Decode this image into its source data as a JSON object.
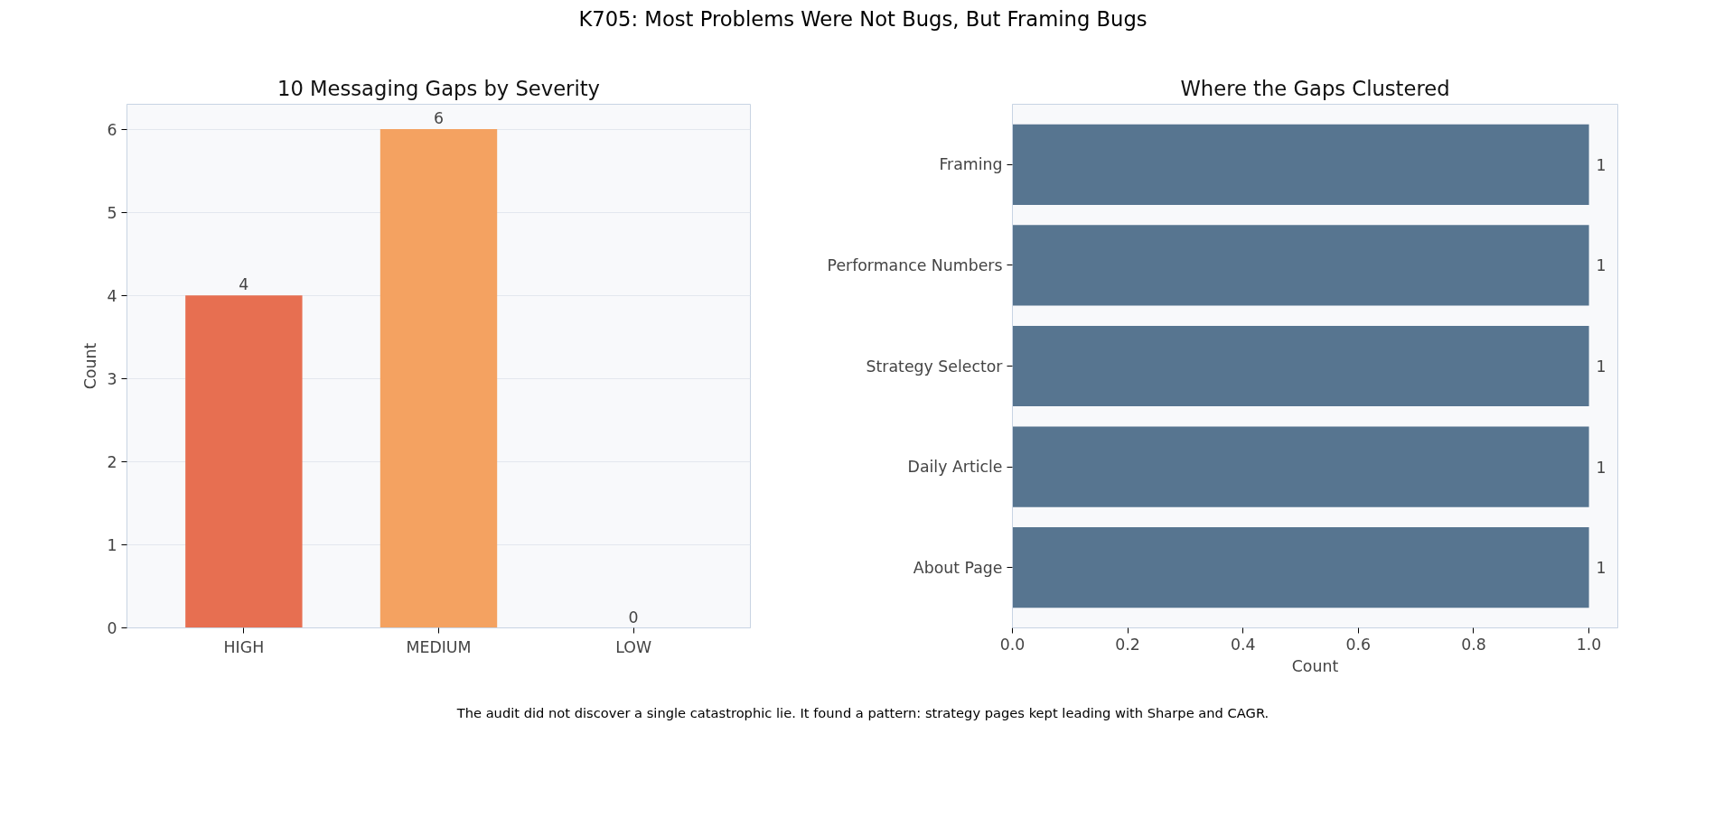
{
  "chart_data": [
    {
      "type": "bar",
      "title": "10 Messaging Gaps by Severity",
      "ylabel": "Count",
      "categories": [
        "HIGH",
        "MEDIUM",
        "LOW"
      ],
      "values": [
        4,
        6,
        0
      ],
      "colors": [
        "#e76f51",
        "#f4a261",
        "#2a9d8f"
      ],
      "ylim": [
        0,
        6.3
      ],
      "yticks": [
        0,
        1,
        2,
        3,
        4,
        5,
        6
      ],
      "grid": "y",
      "data_labels": true,
      "annotations": [
        "K705: Most Problems Were Not Bugs, But Framing Bugs",
        "The audit did not discover a single catastrophic lie. It found a pattern: strategy pages kept leading with Sharpe and CAGR."
      ]
    },
    {
      "type": "bar",
      "orientation": "horizontal",
      "title": "Where the Gaps Clustered",
      "xlabel": "Count",
      "categories": [
        "Framing",
        "Performance Numbers",
        "Strategy Selector",
        "Daily Article",
        "About Page"
      ],
      "values": [
        1,
        1,
        1,
        1,
        1
      ],
      "color": "#577590",
      "xlim": [
        0,
        1.05
      ],
      "xticks": [
        {
          "value": 0,
          "label": "0.0"
        },
        {
          "value": 0.2,
          "label": "0.2"
        },
        {
          "value": 0.4,
          "label": "0.4"
        },
        {
          "value": 0.6,
          "label": "0.6"
        },
        {
          "value": 0.8,
          "label": "0.8"
        },
        {
          "value": 1,
          "label": "1.0"
        }
      ],
      "grid": false,
      "data_labels": true
    }
  ]
}
